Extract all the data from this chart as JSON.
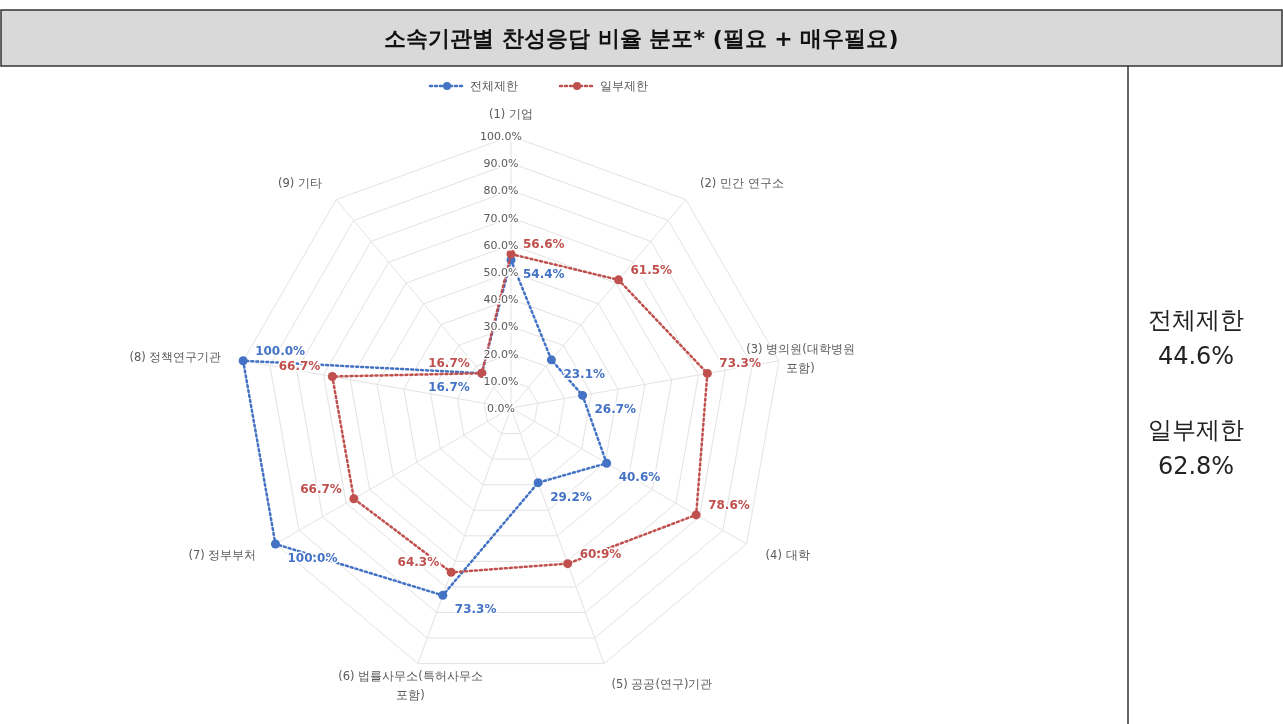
{
  "chart_data": {
    "type": "radar",
    "title": "소속기관별 찬성응답 비율 분포* (필요 + 매우필요)",
    "categories": [
      "(1) 기업",
      "(2) 민간 연구소",
      "(3) 병의원(대학병원 포함)",
      "(4) 대학",
      "(5) 공공(연구)기관",
      "(6) 법률사무소(특허사무소 포함)",
      "(7) 정부부처",
      "(8) 정책연구기관",
      "(9) 기타"
    ],
    "series": [
      {
        "name": "전체제한",
        "color": "#4472c4",
        "values": [
          54.4,
          23.1,
          26.7,
          40.6,
          29.2,
          73.3,
          100.0,
          100.0,
          16.7
        ],
        "value_labels": [
          "54.4%",
          "23.1%",
          "26.7%",
          "40.6%",
          "29.2%",
          "73.3%",
          "100.0%",
          "100.0%",
          "16.7%"
        ]
      },
      {
        "name": "일부제한",
        "color": "#c0504d",
        "values": [
          56.6,
          61.5,
          73.3,
          78.6,
          60.9,
          64.3,
          66.7,
          66.7,
          16.7
        ],
        "value_labels": [
          "56.6%",
          "61.5%",
          "73.3%",
          "78.6%",
          "60.9%",
          "64.3%",
          "66.7%",
          "66.7%",
          "16.7%"
        ]
      }
    ],
    "ylim": [
      0,
      100
    ],
    "yticks": [
      {
        "value": 0,
        "label": "0.0%"
      },
      {
        "value": 10,
        "label": "10.0%"
      },
      {
        "value": 20,
        "label": "20.0%"
      },
      {
        "value": 30,
        "label": "30.0%"
      },
      {
        "value": 40,
        "label": "40.0%"
      },
      {
        "value": 50,
        "label": "50.0%"
      },
      {
        "value": 60,
        "label": "60.0%"
      },
      {
        "value": 70,
        "label": "70.0%"
      },
      {
        "value": 80,
        "label": "80.0%"
      },
      {
        "value": 90,
        "label": "90.0%"
      },
      {
        "value": 100,
        "label": "100.0%"
      }
    ],
    "grid": true,
    "legend": "top",
    "marker": "circle",
    "line_style": "dotted",
    "annotations": [
      "전체제한\n44.6%",
      "일부제한\n62.8%"
    ]
  }
}
